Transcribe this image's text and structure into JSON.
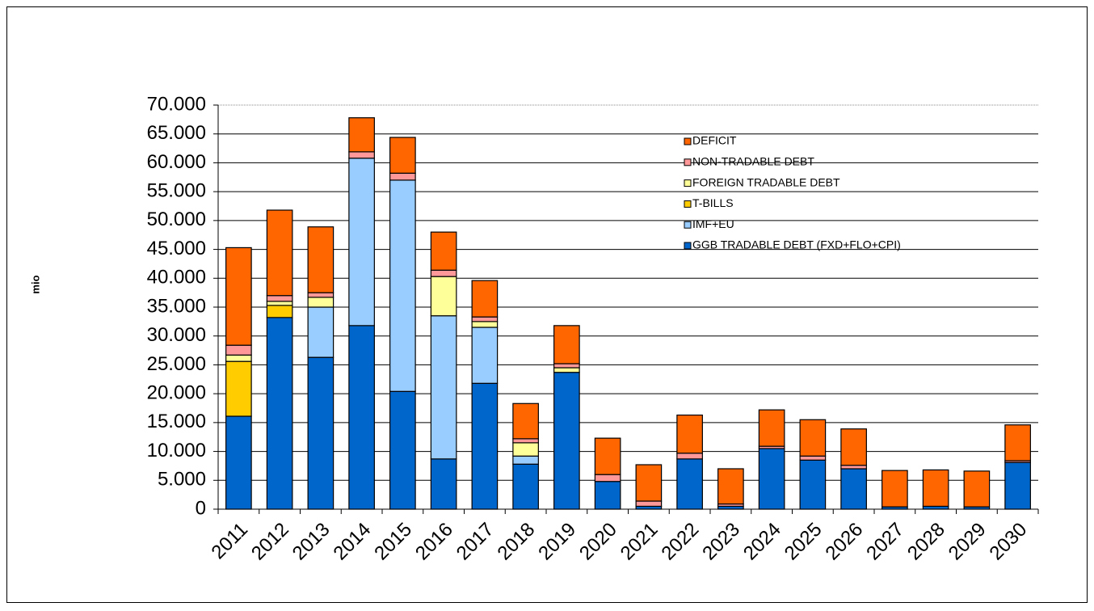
{
  "chart_data": {
    "type": "stacked-bar",
    "y_axis_label": "mio",
    "categories": [
      "2011",
      "2012",
      "2013",
      "2014",
      "2015",
      "2016",
      "2017",
      "2018",
      "2019",
      "2020",
      "2021",
      "2022",
      "2023",
      "2024",
      "2025",
      "2026",
      "2027",
      "2028",
      "2029",
      "2030"
    ],
    "series": [
      {
        "name": "GGB TRADABLE DEBT (FXD+FLO+CPI)",
        "color": "#0066cc",
        "values": [
          16100,
          33200,
          26300,
          31800,
          20400,
          8700,
          21800,
          7800,
          23700,
          4800,
          500,
          8700,
          500,
          10500,
          8500,
          7000,
          400,
          500,
          400,
          8100
        ]
      },
      {
        "name": "IMF+EU",
        "color": "#99ccff",
        "values": [
          0,
          0,
          8700,
          29000,
          36600,
          24800,
          9700,
          1400,
          0,
          0,
          0,
          0,
          0,
          0,
          0,
          0,
          0,
          0,
          0,
          0
        ]
      },
      {
        "name": "T-BILLS",
        "color": "#ffcc00",
        "values": [
          9500,
          2100,
          0,
          0,
          0,
          0,
          0,
          0,
          0,
          0,
          0,
          0,
          0,
          0,
          0,
          0,
          0,
          0,
          0,
          0
        ]
      },
      {
        "name": "FOREIGN TRADABLE DEBT",
        "color": "#ffff99",
        "values": [
          1100,
          700,
          1700,
          0,
          0,
          6800,
          1000,
          2300,
          800,
          0,
          0,
          0,
          0,
          0,
          0,
          0,
          0,
          0,
          0,
          0
        ]
      },
      {
        "name": "NON-TRADABLE DEBT",
        "color": "#ff9999",
        "values": [
          1700,
          1000,
          800,
          1100,
          1200,
          1100,
          800,
          700,
          700,
          1200,
          900,
          1000,
          400,
          400,
          700,
          600,
          0,
          0,
          0,
          300
        ]
      },
      {
        "name": "DEFICIT",
        "color": "#ff6600",
        "values": [
          16900,
          14800,
          11400,
          5900,
          6200,
          6600,
          6300,
          6100,
          6600,
          6300,
          6300,
          6600,
          6100,
          6300,
          6300,
          6300,
          6300,
          6300,
          6200,
          6200
        ]
      }
    ],
    "ylim": [
      0,
      70000
    ],
    "yticks": [
      0,
      {
        "value": 5000,
        "label": "5.000"
      },
      {
        "value": 10000,
        "label": "10.000"
      },
      {
        "value": 15000,
        "label": "15.000"
      },
      {
        "value": 20000,
        "label": "20.000"
      },
      {
        "value": 25000,
        "label": "25.000"
      },
      {
        "value": 30000,
        "label": "30.000"
      },
      {
        "value": 35000,
        "label": "35.000"
      },
      {
        "value": 40000,
        "label": "40.000"
      },
      {
        "value": 45000,
        "label": "45.000"
      },
      {
        "value": 50000,
        "label": "50.000"
      },
      {
        "value": 55000,
        "label": "55.000"
      },
      {
        "value": 60000,
        "label": "60.000"
      },
      {
        "value": 65000,
        "label": "65.000"
      },
      {
        "value": 70000,
        "label": "70.000"
      }
    ],
    "grid": true
  }
}
